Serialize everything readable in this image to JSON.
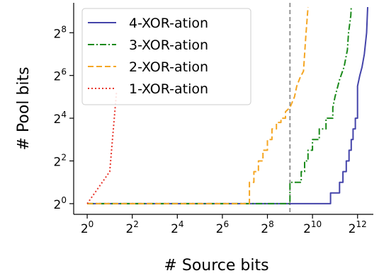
{
  "chart_data": {
    "type": "line",
    "title": "",
    "xlabel": "# Source bits",
    "ylabel": "# Pool bits",
    "xscale": "log2",
    "yscale": "log2",
    "xlim_exp": [
      -0.6,
      12.7
    ],
    "ylim_exp": [
      -0.5,
      9.4
    ],
    "xticks": [
      {
        "base": "2",
        "exp": "0"
      },
      {
        "base": "2",
        "exp": "2"
      },
      {
        "base": "2",
        "exp": "4"
      },
      {
        "base": "2",
        "exp": "6"
      },
      {
        "base": "2",
        "exp": "8"
      },
      {
        "base": "2",
        "exp": "10"
      },
      {
        "base": "2",
        "exp": "12"
      }
    ],
    "yticks": [
      {
        "base": "2",
        "exp": "0"
      },
      {
        "base": "2",
        "exp": "2"
      },
      {
        "base": "2",
        "exp": "4"
      },
      {
        "base": "2",
        "exp": "6"
      },
      {
        "base": "2",
        "exp": "8"
      }
    ],
    "reference_line": {
      "x_exp": 9,
      "style": "dashed",
      "color": "#808080"
    },
    "legend": {
      "placement": "top-left"
    },
    "series": [
      {
        "name": "4-XOR-ation",
        "color": "#4444aa",
        "linestyle": "solid",
        "x_exp": [
          0,
          10.8,
          10.8,
          11.2,
          11.2,
          11.35,
          11.35,
          11.5,
          11.5,
          11.62,
          11.62,
          11.72,
          11.72,
          11.8,
          11.8,
          11.9,
          11.9,
          12.0,
          12.0,
          12.1,
          12.2,
          12.3,
          12.4,
          12.45
        ],
        "y_exp": [
          0,
          0,
          0.5,
          0.5,
          1.0,
          1.0,
          1.5,
          1.5,
          2.0,
          2.0,
          2.5,
          2.5,
          3.0,
          3.0,
          3.5,
          3.5,
          4.0,
          4.0,
          5.5,
          6.0,
          6.4,
          7.0,
          8.0,
          9.2
        ]
      },
      {
        "name": "3-XOR-ation",
        "color": "#1a8a1a",
        "linestyle": "dashdot",
        "x_exp": [
          0,
          9.0,
          9.0,
          9.5,
          9.5,
          9.65,
          9.65,
          9.8,
          9.8,
          10.0,
          10.0,
          10.3,
          10.3,
          10.6,
          10.6,
          10.9,
          10.9,
          11.0,
          11.2,
          11.4,
          11.55,
          11.6,
          11.7,
          11.72
        ],
        "y_exp": [
          0,
          0,
          1.0,
          1.0,
          1.5,
          1.5,
          2.0,
          2.0,
          2.5,
          2.5,
          3.0,
          3.0,
          3.5,
          3.5,
          4.0,
          4.0,
          4.5,
          5.0,
          5.8,
          6.4,
          7.2,
          8.0,
          8.8,
          9.2
        ]
      },
      {
        "name": "2-XOR-ation",
        "color": "#f5a623",
        "linestyle": "dashed",
        "x_exp": [
          0,
          7.2,
          7.2,
          7.4,
          7.4,
          7.6,
          7.6,
          7.8,
          7.8,
          8.0,
          8.0,
          8.2,
          8.2,
          8.4,
          8.4,
          8.6,
          8.6,
          8.8,
          8.8,
          9.0,
          9.2,
          9.3,
          9.45,
          9.6,
          9.65,
          9.7,
          9.75,
          9.8
        ],
        "y_exp": [
          0,
          0,
          1.0,
          1.0,
          1.5,
          1.5,
          2.0,
          2.0,
          2.5,
          2.5,
          3.0,
          3.0,
          3.5,
          3.5,
          3.8,
          3.8,
          4.0,
          4.0,
          4.3,
          4.5,
          5.0,
          5.5,
          5.9,
          6.2,
          7.0,
          7.8,
          8.5,
          9.2
        ]
      },
      {
        "name": "1-XOR-ation",
        "color": "#e8352b",
        "linestyle": "dotted",
        "x_exp": [
          0,
          1.0,
          1.3
        ],
        "y_exp": [
          0,
          1.5,
          5.2
        ]
      }
    ]
  }
}
